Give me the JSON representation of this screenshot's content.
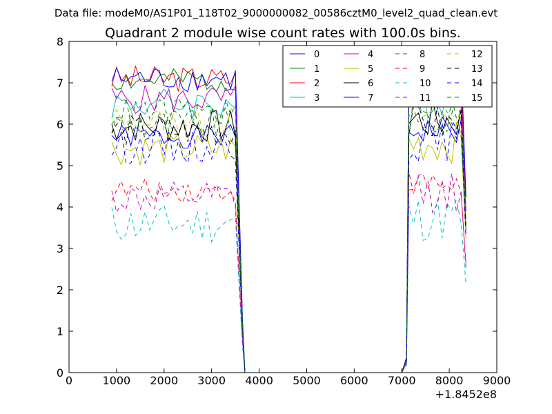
{
  "chart_data": {
    "type": "line",
    "suptitle": "Data file: modeM0/AS1P01_118T02_9000000082_00586cztM0_level2_quad_clean.evt",
    "title": "Quadrant 2 module wise count rates with 100.0s bins.",
    "xlabel": "",
    "ylabel": "",
    "x_offset_label": "+1.8452e8",
    "xlim": [
      0,
      9000
    ],
    "ylim": [
      0,
      8
    ],
    "xticks": [
      "0",
      "1000",
      "2000",
      "3000",
      "4000",
      "5000",
      "6000",
      "7000",
      "8000",
      "9000"
    ],
    "yticks": [
      "0",
      "1",
      "2",
      "3",
      "4",
      "5",
      "6",
      "7",
      "8"
    ],
    "grid": false,
    "legend_position": "top-right",
    "segments": [
      {
        "start": 900,
        "end": 3550,
        "step": 100
      },
      {
        "start": 7150,
        "end": 8350,
        "step": 100
      }
    ],
    "drop_segment": [
      {
        "x": 3550,
        "fraction": 1.0
      },
      {
        "x": 3650,
        "fraction": 0.18
      },
      {
        "x": 3700,
        "fraction": 0.0
      },
      {
        "x": 7000,
        "fraction": 0.0
      },
      {
        "x": 7100,
        "fraction": 0.05
      },
      {
        "x": 7150,
        "fraction": 1.0
      }
    ],
    "series": [
      {
        "name": "0",
        "color": "#0000ff",
        "dash": "solid",
        "base": 5.7,
        "amp": 0.18,
        "seed": 1
      },
      {
        "name": "1",
        "color": "#008000",
        "dash": "solid",
        "base": 7.05,
        "amp": 0.18,
        "seed": 2
      },
      {
        "name": "2",
        "color": "#ff0000",
        "dash": "solid",
        "base": 7.1,
        "amp": 0.2,
        "seed": 3
      },
      {
        "name": "3",
        "color": "#00bfbf",
        "dash": "solid",
        "base": 6.5,
        "amp": 0.25,
        "seed": 4
      },
      {
        "name": "4",
        "color": "#bf00bf",
        "dash": "solid",
        "base": 6.6,
        "amp": 0.22,
        "seed": 5
      },
      {
        "name": "5",
        "color": "#bfbf00",
        "dash": "solid",
        "base": 5.4,
        "amp": 0.25,
        "seed": 6
      },
      {
        "name": "6",
        "color": "#000000",
        "dash": "solid",
        "base": 5.95,
        "amp": 0.25,
        "seed": 7
      },
      {
        "name": "7",
        "color": "#0000ff",
        "dash": "solid",
        "base": 7.1,
        "amp": 0.2,
        "seed": 8
      },
      {
        "name": "8",
        "color": "#008000",
        "dash": "dashed",
        "base": 6.0,
        "amp": 0.25,
        "seed": 9
      },
      {
        "name": "9",
        "color": "#ff0000",
        "dash": "dashed",
        "base": 4.4,
        "amp": 0.18,
        "seed": 10
      },
      {
        "name": "10",
        "color": "#00bfbf",
        "dash": "dashed",
        "base": 3.6,
        "amp": 0.3,
        "seed": 11
      },
      {
        "name": "11",
        "color": "#bf00bf",
        "dash": "dashed",
        "base": 4.2,
        "amp": 0.25,
        "seed": 12
      },
      {
        "name": "12",
        "color": "#bfbf00",
        "dash": "dashed",
        "base": 6.1,
        "amp": 0.2,
        "seed": 13
      },
      {
        "name": "13",
        "color": "#000000",
        "dash": "dashed",
        "base": 5.85,
        "amp": 0.25,
        "seed": 14
      },
      {
        "name": "14",
        "color": "#0000ff",
        "dash": "dashed",
        "base": 5.45,
        "amp": 0.25,
        "seed": 15
      },
      {
        "name": "15",
        "color": "#008000",
        "dash": "dashed",
        "base": 6.3,
        "amp": 0.22,
        "seed": 16
      }
    ]
  }
}
